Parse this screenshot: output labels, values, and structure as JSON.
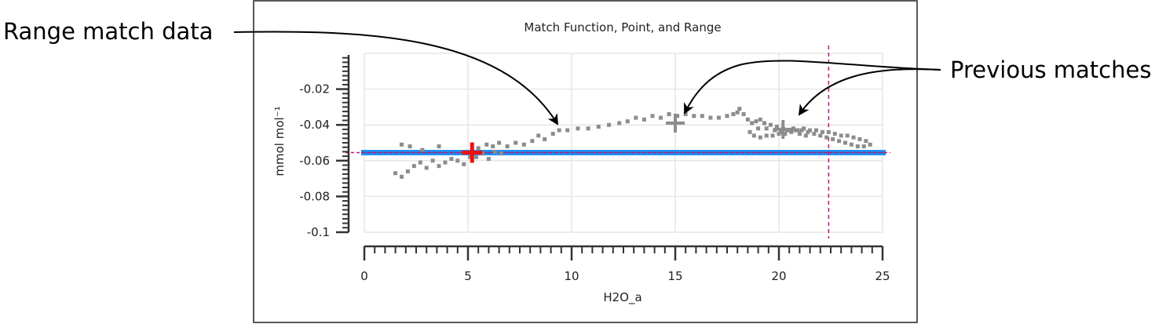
{
  "annotations": {
    "range_match": "Range match data",
    "previous_matches": "Previous matches"
  },
  "chart_data": {
    "type": "scatter",
    "title": "Match Function, Point, and Range",
    "xlabel": "H2O_a",
    "ylabel": "mmol mol⁻¹",
    "xlim": [
      0,
      25
    ],
    "ylim": [
      -0.1,
      0
    ],
    "x_ticks": [
      "0",
      "5",
      "10",
      "15",
      "20",
      "25"
    ],
    "y_ticks": [
      "-0.02",
      "-0.04",
      "-0.06",
      "-0.08",
      "-0.1"
    ],
    "grid": true,
    "colors": {
      "points": "#8c8c8c",
      "match_line": "#1e90ff",
      "match_line_inner": "#2b6fb0",
      "threshold": "#cc1177",
      "current_match": "#ee1111",
      "previous_match": "#8c8c8c",
      "grid": "#e6e6e6"
    },
    "match_value": -0.0555,
    "vertical_marker_x": 22.4,
    "current_match": {
      "x": 5.2,
      "y": -0.0555
    },
    "previous_matches": [
      {
        "x": 15.0,
        "y": -0.039
      },
      {
        "x": 20.2,
        "y": -0.0425
      }
    ],
    "series": [
      {
        "values": [
          [
            1.5,
            -0.067
          ],
          [
            1.8,
            -0.069
          ],
          [
            2.1,
            -0.066
          ],
          [
            2.4,
            -0.063
          ],
          [
            2.7,
            -0.061
          ],
          [
            3.0,
            -0.064
          ],
          [
            3.3,
            -0.06
          ],
          [
            3.6,
            -0.063
          ],
          [
            3.9,
            -0.061
          ],
          [
            4.2,
            -0.059
          ],
          [
            4.5,
            -0.06
          ],
          [
            4.8,
            -0.062
          ],
          [
            5.1,
            -0.058
          ],
          [
            5.4,
            -0.058
          ],
          [
            5.7,
            -0.056
          ],
          [
            6.0,
            -0.059
          ],
          [
            6.3,
            -0.055
          ],
          [
            6.6,
            -0.056
          ],
          [
            1.8,
            -0.051
          ],
          [
            2.2,
            -0.052
          ],
          [
            2.8,
            -0.054
          ],
          [
            3.6,
            -0.052
          ],
          [
            5.5,
            -0.053
          ],
          [
            5.9,
            -0.051
          ],
          [
            6.2,
            -0.052
          ],
          [
            6.5,
            -0.05
          ],
          [
            6.9,
            -0.052
          ],
          [
            7.3,
            -0.05
          ],
          [
            7.7,
            -0.051
          ],
          [
            8.1,
            -0.049
          ],
          [
            8.4,
            -0.046
          ],
          [
            8.7,
            -0.048
          ],
          [
            9.1,
            -0.045
          ],
          [
            9.4,
            -0.043
          ],
          [
            9.8,
            -0.043
          ],
          [
            10.3,
            -0.042
          ],
          [
            10.8,
            -0.042
          ],
          [
            11.3,
            -0.041
          ],
          [
            11.8,
            -0.04
          ],
          [
            12.3,
            -0.039
          ],
          [
            12.7,
            -0.038
          ],
          [
            13.1,
            -0.036
          ],
          [
            13.5,
            -0.037
          ],
          [
            13.9,
            -0.035
          ],
          [
            14.3,
            -0.036
          ],
          [
            14.7,
            -0.034
          ],
          [
            15.1,
            -0.035
          ],
          [
            15.5,
            -0.034
          ],
          [
            15.9,
            -0.035
          ],
          [
            16.3,
            -0.035
          ],
          [
            16.7,
            -0.036
          ],
          [
            17.1,
            -0.036
          ],
          [
            17.5,
            -0.035
          ],
          [
            17.8,
            -0.034
          ],
          [
            18.0,
            -0.033
          ],
          [
            18.1,
            -0.031
          ],
          [
            18.3,
            -0.034
          ],
          [
            18.5,
            -0.037
          ],
          [
            18.7,
            -0.039
          ],
          [
            18.9,
            -0.038
          ],
          [
            19.1,
            -0.037
          ],
          [
            19.3,
            -0.039
          ],
          [
            19.6,
            -0.04
          ],
          [
            19.9,
            -0.041
          ],
          [
            20.2,
            -0.042
          ],
          [
            20.5,
            -0.043
          ],
          [
            20.8,
            -0.043
          ],
          [
            21.1,
            -0.043
          ],
          [
            21.4,
            -0.044
          ],
          [
            21.7,
            -0.045
          ],
          [
            22.0,
            -0.046
          ],
          [
            22.3,
            -0.047
          ],
          [
            22.6,
            -0.048
          ],
          [
            22.9,
            -0.049
          ],
          [
            23.2,
            -0.05
          ],
          [
            23.5,
            -0.051
          ],
          [
            23.8,
            -0.052
          ],
          [
            24.1,
            -0.052
          ],
          [
            24.4,
            -0.051
          ],
          [
            24.2,
            -0.049
          ],
          [
            23.9,
            -0.048
          ],
          [
            23.6,
            -0.047
          ],
          [
            23.3,
            -0.046
          ],
          [
            23.0,
            -0.046
          ],
          [
            22.7,
            -0.045
          ],
          [
            22.4,
            -0.044
          ],
          [
            22.1,
            -0.044
          ],
          [
            21.8,
            -0.043
          ],
          [
            21.5,
            -0.043
          ],
          [
            21.2,
            -0.042
          ],
          [
            20.9,
            -0.043
          ],
          [
            20.6,
            -0.044
          ],
          [
            20.3,
            -0.045
          ],
          [
            20.0,
            -0.045
          ],
          [
            19.7,
            -0.046
          ],
          [
            19.4,
            -0.046
          ],
          [
            19.1,
            -0.047
          ],
          [
            18.8,
            -0.046
          ],
          [
            18.6,
            -0.044
          ],
          [
            19.0,
            -0.042
          ],
          [
            19.4,
            -0.042
          ],
          [
            19.8,
            -0.043
          ],
          [
            20.1,
            -0.044
          ],
          [
            20.4,
            -0.043
          ],
          [
            20.7,
            -0.042
          ],
          [
            21.0,
            -0.045
          ],
          [
            21.3,
            -0.046
          ]
        ]
      }
    ]
  }
}
